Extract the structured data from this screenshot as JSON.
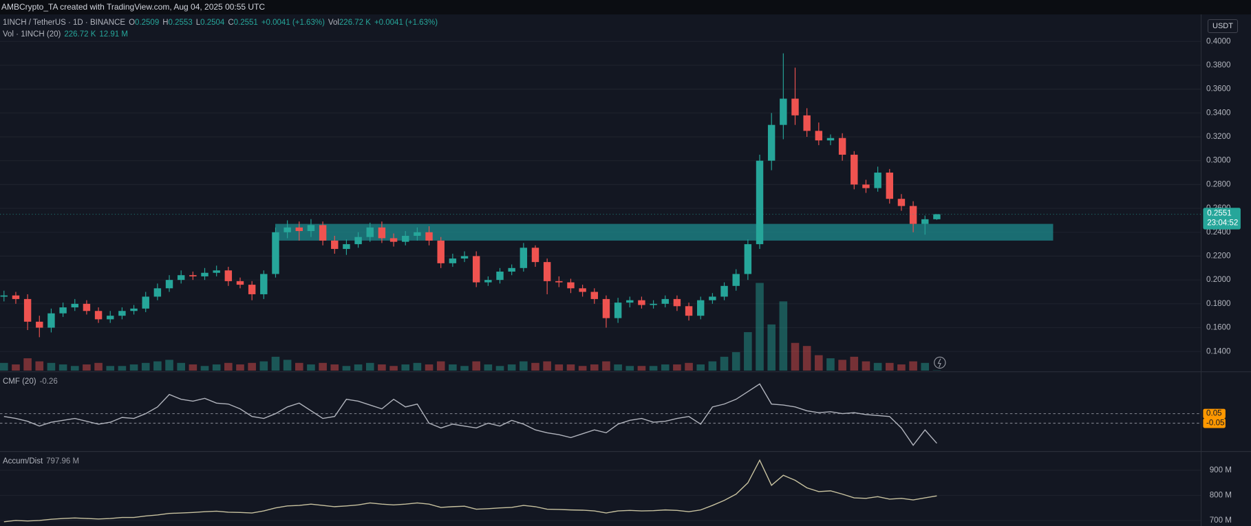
{
  "header": {
    "text": "AMBCrypto_TA created with TradingView.com, Aug 04, 2025 00:55 UTC"
  },
  "chart_data": [
    {
      "type": "candlestick",
      "title": "1INCH / TetherUS · 1D · BINANCE",
      "currency": "USDT",
      "legend_keys": [
        "O",
        "H",
        "L",
        "C",
        "Vol"
      ],
      "change_label": "+0.0041 (+1.63%)",
      "countdown": "23:04:52",
      "up_color": "#26a69a",
      "down_color": "#ef5350",
      "grid": true,
      "ylim": [
        0.124,
        0.4227
      ],
      "yticks": [
        {
          "value": 0.14,
          "label": "0.1400"
        },
        {
          "value": 0.16,
          "label": "0.1600"
        },
        {
          "value": 0.18,
          "label": "0.1800"
        },
        {
          "value": 0.2,
          "label": "0.2000"
        },
        {
          "value": 0.22,
          "label": "0.2200"
        },
        {
          "value": 0.24,
          "label": "0.2400"
        },
        {
          "value": 0.26,
          "label": "0.2600"
        },
        {
          "value": 0.28,
          "label": "0.2800"
        },
        {
          "value": 0.3,
          "label": "0.3000"
        },
        {
          "value": 0.32,
          "label": "0.3200"
        },
        {
          "value": 0.34,
          "label": "0.3400"
        },
        {
          "value": 0.36,
          "label": "0.3600"
        },
        {
          "value": 0.38,
          "label": "0.3800"
        },
        {
          "value": 0.4,
          "label": "0.4000"
        }
      ],
      "zone": {
        "low": 0.233,
        "high": 0.247,
        "color": "#1e8b8d"
      },
      "open": [
        0.186,
        0.187,
        0.184,
        0.165,
        0.16,
        0.172,
        0.177,
        0.18,
        0.174,
        0.167,
        0.17,
        0.174,
        0.176,
        0.186,
        0.193,
        0.2,
        0.204,
        0.203,
        0.206,
        0.208,
        0.199,
        0.196,
        0.188,
        0.205,
        0.24,
        0.244,
        0.241,
        0.246,
        0.233,
        0.226,
        0.23,
        0.236,
        0.244,
        0.235,
        0.232,
        0.237,
        0.24,
        0.233,
        0.214,
        0.218,
        0.22,
        0.198,
        0.2,
        0.207,
        0.21,
        0.227,
        0.215,
        0.199,
        0.198,
        0.193,
        0.19,
        0.184,
        0.168,
        0.181,
        0.183,
        0.179,
        0.18,
        0.184,
        0.178,
        0.17,
        0.183,
        0.186,
        0.195,
        0.205,
        0.23,
        0.3,
        0.33,
        0.352,
        0.338,
        0.325,
        0.317,
        0.319,
        0.305,
        0.28,
        0.277,
        0.29,
        0.268,
        0.262,
        0.247,
        0.2509
      ],
      "high": [
        0.191,
        0.19,
        0.188,
        0.17,
        0.176,
        0.181,
        0.184,
        0.183,
        0.177,
        0.174,
        0.177,
        0.179,
        0.19,
        0.197,
        0.204,
        0.208,
        0.207,
        0.21,
        0.212,
        0.211,
        0.202,
        0.199,
        0.208,
        0.244,
        0.25,
        0.249,
        0.251,
        0.249,
        0.237,
        0.234,
        0.24,
        0.248,
        0.249,
        0.239,
        0.241,
        0.244,
        0.245,
        0.236,
        0.222,
        0.224,
        0.224,
        0.203,
        0.21,
        0.213,
        0.231,
        0.229,
        0.218,
        0.203,
        0.201,
        0.196,
        0.193,
        0.187,
        0.185,
        0.186,
        0.186,
        0.183,
        0.187,
        0.187,
        0.181,
        0.186,
        0.189,
        0.198,
        0.209,
        0.234,
        0.305,
        0.34,
        0.39,
        0.378,
        0.344,
        0.332,
        0.322,
        0.323,
        0.308,
        0.284,
        0.295,
        0.293,
        0.272,
        0.266,
        0.254,
        0.2553
      ],
      "low": [
        0.182,
        0.18,
        0.158,
        0.152,
        0.156,
        0.169,
        0.174,
        0.171,
        0.164,
        0.164,
        0.167,
        0.171,
        0.173,
        0.183,
        0.19,
        0.197,
        0.2,
        0.2,
        0.203,
        0.195,
        0.193,
        0.183,
        0.184,
        0.202,
        0.235,
        0.233,
        0.236,
        0.229,
        0.222,
        0.221,
        0.227,
        0.232,
        0.231,
        0.228,
        0.229,
        0.233,
        0.229,
        0.21,
        0.211,
        0.215,
        0.194,
        0.195,
        0.197,
        0.204,
        0.207,
        0.211,
        0.188,
        0.194,
        0.189,
        0.186,
        0.18,
        0.16,
        0.164,
        0.177,
        0.176,
        0.176,
        0.177,
        0.174,
        0.166,
        0.167,
        0.18,
        0.183,
        0.191,
        0.2,
        0.226,
        0.292,
        0.318,
        0.33,
        0.32,
        0.313,
        0.313,
        0.3,
        0.276,
        0.273,
        0.274,
        0.264,
        0.258,
        0.24,
        0.238,
        0.2504
      ],
      "close": [
        0.187,
        0.184,
        0.165,
        0.16,
        0.172,
        0.177,
        0.18,
        0.174,
        0.167,
        0.17,
        0.174,
        0.176,
        0.186,
        0.193,
        0.2,
        0.204,
        0.203,
        0.206,
        0.208,
        0.199,
        0.196,
        0.188,
        0.205,
        0.24,
        0.244,
        0.241,
        0.246,
        0.233,
        0.226,
        0.23,
        0.236,
        0.244,
        0.235,
        0.232,
        0.237,
        0.24,
        0.233,
        0.214,
        0.218,
        0.22,
        0.198,
        0.2,
        0.207,
        0.21,
        0.227,
        0.215,
        0.199,
        0.198,
        0.193,
        0.19,
        0.184,
        0.168,
        0.181,
        0.183,
        0.179,
        0.18,
        0.184,
        0.178,
        0.17,
        0.183,
        0.186,
        0.195,
        0.205,
        0.23,
        0.3,
        0.33,
        0.352,
        0.338,
        0.325,
        0.317,
        0.319,
        0.305,
        0.28,
        0.277,
        0.29,
        0.268,
        0.262,
        0.247,
        0.2509,
        0.2551
      ],
      "volume": {
        "name": "Vol · 1INCH (20)",
        "last_label": "226.72 K",
        "ma_label": "12.91 M",
        "values": [
          5,
          4,
          8,
          6,
          5,
          4,
          3,
          4,
          5,
          3,
          3,
          4,
          5,
          6,
          7,
          5,
          4,
          3,
          4,
          5,
          4,
          5,
          6,
          9,
          7,
          5,
          4,
          5,
          4,
          3,
          4,
          5,
          4,
          3,
          4,
          5,
          4,
          6,
          4,
          3,
          6,
          4,
          3,
          4,
          6,
          5,
          6,
          4,
          4,
          3,
          4,
          6,
          4,
          3,
          3,
          3,
          4,
          4,
          5,
          4,
          6,
          9,
          12,
          25,
          57,
          30,
          45,
          18,
          16,
          10,
          8,
          7,
          9,
          6,
          5,
          5,
          4,
          6,
          5,
          0.22672
        ]
      }
    },
    {
      "type": "line",
      "title": "CMF (20)",
      "color": "#b2b5be",
      "level_color": "#ff9800",
      "ylim": [
        -0.333,
        0.458
      ],
      "yticks": [
        0.05,
        -0.05
      ],
      "values": [
        0.02,
        0.0,
        -0.03,
        -0.08,
        -0.04,
        -0.02,
        0.0,
        -0.03,
        -0.06,
        -0.04,
        0.01,
        0.0,
        0.05,
        0.12,
        0.25,
        0.2,
        0.18,
        0.21,
        0.16,
        0.15,
        0.1,
        0.02,
        0.0,
        0.05,
        0.12,
        0.16,
        0.08,
        0.0,
        0.02,
        0.2,
        0.18,
        0.14,
        0.1,
        0.2,
        0.12,
        0.15,
        -0.05,
        -0.1,
        -0.06,
        -0.08,
        -0.1,
        -0.05,
        -0.08,
        -0.02,
        -0.06,
        -0.12,
        -0.15,
        -0.17,
        -0.2,
        -0.16,
        -0.12,
        -0.15,
        -0.06,
        -0.02,
        0.0,
        -0.04,
        -0.03,
        0.0,
        0.02,
        -0.06,
        0.12,
        0.15,
        0.2,
        0.28,
        0.36,
        0.15,
        0.14,
        0.12,
        0.08,
        0.06,
        0.07,
        0.05,
        0.06,
        0.04,
        0.03,
        0.02,
        -0.1,
        -0.28,
        -0.12,
        -0.26
      ]
    },
    {
      "type": "line",
      "title": "Accum/Dist",
      "color": "#c9c3a0",
      "last_label": "797.96 M",
      "ylim": [
        678,
        970
      ],
      "yticks": [
        {
          "value": 700,
          "label": "700 M"
        },
        {
          "value": 800,
          "label": "800 M"
        },
        {
          "value": 900,
          "label": "900 M"
        }
      ],
      "values": [
        695,
        700,
        698,
        700,
        705,
        708,
        710,
        708,
        706,
        708,
        712,
        712,
        718,
        722,
        728,
        730,
        732,
        735,
        737,
        733,
        732,
        730,
        738,
        750,
        758,
        760,
        765,
        760,
        755,
        758,
        762,
        770,
        765,
        762,
        765,
        770,
        765,
        752,
        755,
        757,
        745,
        747,
        750,
        752,
        760,
        755,
        745,
        744,
        742,
        741,
        738,
        730,
        738,
        740,
        738,
        739,
        742,
        740,
        735,
        742,
        760,
        780,
        805,
        850,
        940,
        840,
        880,
        860,
        830,
        815,
        818,
        805,
        790,
        788,
        795,
        785,
        788,
        782,
        790,
        797.96
      ]
    }
  ]
}
